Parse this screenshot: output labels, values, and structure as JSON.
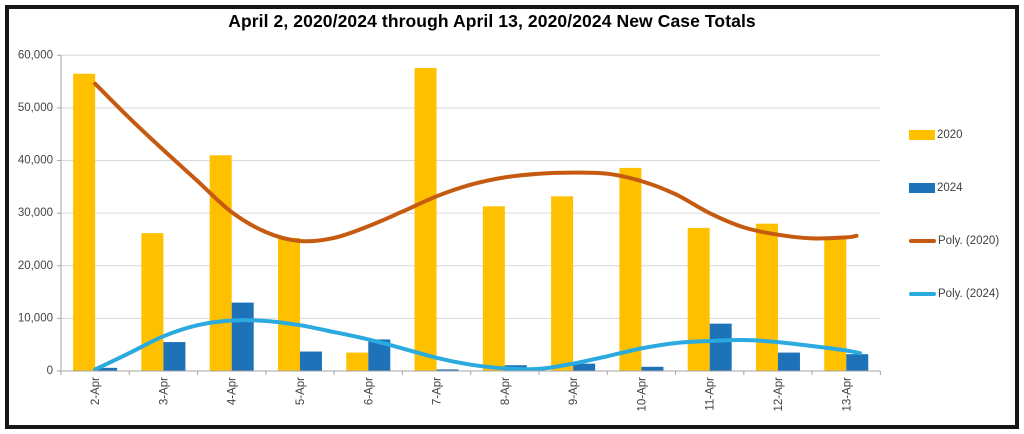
{
  "colors": {
    "bar_2020": "#FFC000",
    "bar_2024": "#1E73B8",
    "poly_2020": "#C55A11",
    "poly_2024": "#2BAADF",
    "grid": "#D9D9D9",
    "axis": "#A6A6A6",
    "tick_text": "#444444",
    "title_text": "#000000",
    "frame": "#161616",
    "background": "#FFFFFF"
  },
  "legend": {
    "items": [
      {
        "label": "2020",
        "swatch": "bar",
        "color_key": "bar_2020"
      },
      {
        "label": "2024",
        "swatch": "bar",
        "color_key": "bar_2024"
      },
      {
        "label": "Poly. (2020)",
        "swatch": "line",
        "color_key": "poly_2020"
      },
      {
        "label": "Poly. (2024)",
        "swatch": "line",
        "color_key": "poly_2024"
      }
    ]
  },
  "chart_data": {
    "type": "bar",
    "title": "April 2, 2020/2024 through April 13, 2020/2024 New Case Totals",
    "xlabel": "",
    "ylabel": "",
    "categories": [
      "2-Apr",
      "3-Apr",
      "4-Apr",
      "5-Apr",
      "6-Apr",
      "7-Apr",
      "8-Apr",
      "9-Apr",
      "10-Apr",
      "11-Apr",
      "12-Apr",
      "13-Apr"
    ],
    "series": [
      {
        "name": "2020",
        "type": "bar",
        "color_key": "bar_2020",
        "values": [
          56500,
          26200,
          41000,
          25300,
          3500,
          57600,
          31300,
          33200,
          38600,
          27200,
          28000,
          25000
        ]
      },
      {
        "name": "2024",
        "type": "bar",
        "color_key": "bar_2024",
        "values": [
          600,
          5500,
          13000,
          3700,
          6000,
          300,
          1100,
          1400,
          800,
          9000,
          3500,
          3200
        ]
      },
      {
        "name": "Poly. (2020)",
        "type": "poly_trendline",
        "color_key": "poly_2020",
        "points": [
          [
            0,
            54600
          ],
          [
            0.5,
            48100
          ],
          [
            1,
            42000
          ],
          [
            1.5,
            36100
          ],
          [
            2,
            30200
          ],
          [
            2.5,
            26400
          ],
          [
            3,
            24700
          ],
          [
            3.5,
            25300
          ],
          [
            4,
            27500
          ],
          [
            4.5,
            30300
          ],
          [
            5,
            33200
          ],
          [
            5.5,
            35400
          ],
          [
            6,
            36800
          ],
          [
            6.5,
            37500
          ],
          [
            7,
            37700
          ],
          [
            7.5,
            37500
          ],
          [
            8,
            36100
          ],
          [
            8.5,
            33600
          ],
          [
            9,
            30000
          ],
          [
            9.5,
            27300
          ],
          [
            10,
            25900
          ],
          [
            10.5,
            25200
          ],
          [
            11,
            25400
          ],
          [
            11.15,
            25700
          ]
        ]
      },
      {
        "name": "Poly. (2024)",
        "type": "poly_trendline",
        "color_key": "poly_2024",
        "points": [
          [
            0,
            300
          ],
          [
            0.5,
            3400
          ],
          [
            1,
            6600
          ],
          [
            1.5,
            8700
          ],
          [
            2,
            9600
          ],
          [
            2.5,
            9500
          ],
          [
            3,
            8700
          ],
          [
            3.5,
            7400
          ],
          [
            4,
            6000
          ],
          [
            4.5,
            4300
          ],
          [
            5,
            2500
          ],
          [
            5.5,
            1200
          ],
          [
            6,
            500
          ],
          [
            6.5,
            400
          ],
          [
            7,
            1400
          ],
          [
            7.5,
            2800
          ],
          [
            8,
            4300
          ],
          [
            8.5,
            5300
          ],
          [
            9,
            5700
          ],
          [
            9.5,
            5900
          ],
          [
            10,
            5500
          ],
          [
            10.5,
            4750
          ],
          [
            11,
            3900
          ],
          [
            11.2,
            3400
          ]
        ]
      }
    ],
    "ylim": [
      0,
      60000
    ],
    "y_ticks": [
      "60,000",
      "50,000",
      "40,000",
      "30,000",
      "20,000",
      "10,000",
      "0"
    ],
    "grid": true,
    "legend_position": "right"
  }
}
